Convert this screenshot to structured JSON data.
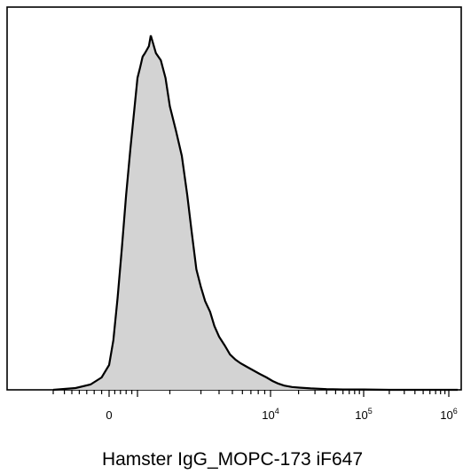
{
  "chart_data": {
    "type": "area",
    "xlabel": "Hamster IgG_MOPC-173 iF647",
    "ylabel": "",
    "title": "",
    "x_scale": "biexponential",
    "x_ticks": [
      {
        "value": 0,
        "base": "0",
        "exp": ""
      },
      {
        "value": 10000,
        "base": "10",
        "exp": "4"
      },
      {
        "value": 100000,
        "base": "10",
        "exp": "5"
      },
      {
        "value": 1000000,
        "base": "10",
        "exp": "6"
      }
    ],
    "xlim": [
      -1500,
      1200000
    ],
    "ylim": [
      0,
      1
    ],
    "fill_color": "#d3d3d3",
    "line_color": "#000000",
    "series": [
      {
        "x": [
          -1500,
          -900,
          -500,
          -200,
          0,
          150,
          300,
          450,
          600,
          750,
          900,
          1000,
          1100,
          1200,
          1300,
          1400,
          1500,
          1600,
          1700,
          1800,
          1900,
          2000,
          2150,
          2300,
          2450,
          2600,
          2800,
          3000,
          3200,
          3450,
          3700,
          4000,
          4400,
          4800,
          5300,
          5800,
          6500,
          7300,
          8200,
          9300,
          10500,
          12000,
          14000,
          17000,
          21000,
          27000,
          40000,
          60000,
          100000,
          200000,
          400000,
          700000,
          1200000
        ],
        "y": [
          0.0,
          0.005,
          0.015,
          0.035,
          0.07,
          0.14,
          0.26,
          0.4,
          0.55,
          0.68,
          0.8,
          0.88,
          0.91,
          0.94,
          0.95,
          0.96,
          0.97,
          1.0,
          0.95,
          0.93,
          0.88,
          0.8,
          0.73,
          0.66,
          0.55,
          0.45,
          0.34,
          0.29,
          0.25,
          0.22,
          0.18,
          0.15,
          0.125,
          0.1,
          0.085,
          0.075,
          0.065,
          0.055,
          0.045,
          0.035,
          0.025,
          0.018,
          0.012,
          0.008,
          0.006,
          0.004,
          0.002,
          0.001,
          0.001,
          0.0,
          0.0,
          0.0,
          0.0
        ]
      }
    ]
  }
}
